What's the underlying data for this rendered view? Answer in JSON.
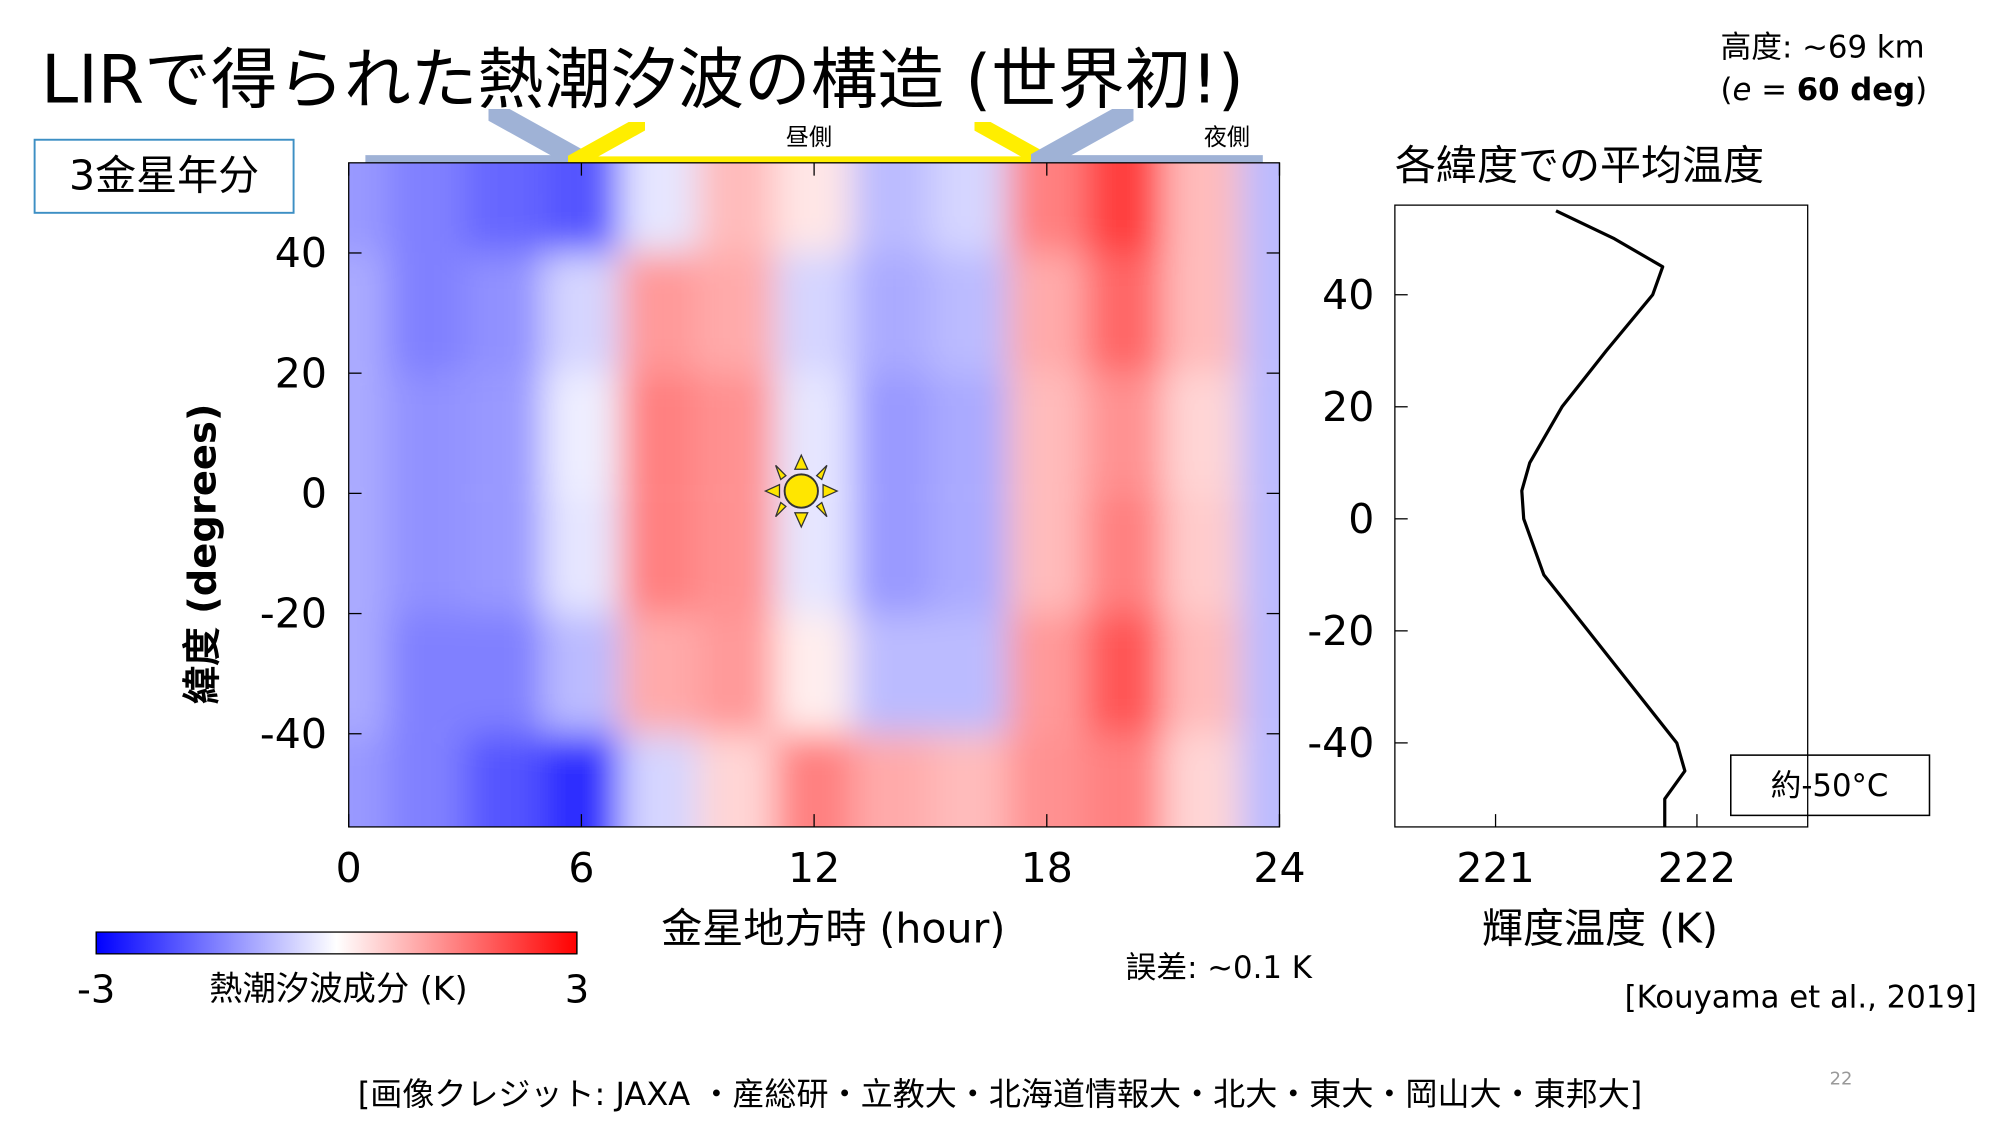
{
  "slide": {
    "title": "LIRで得られた熱潮汐波の構造 (世界初!)",
    "altitude": "高度: ~69 km",
    "emission_angle": [
      "(",
      "e",
      " = ",
      "60 deg",
      ")"
    ],
    "period_box": "3金星年分",
    "dayside": "昼側",
    "nightside": "夜側",
    "error_note": "誤差: ~0.1 K",
    "reference": "[Kouyama et al., 2019]",
    "credit": "[画像クレジット: JAXA ・産総研・立教大・北海道情報大・北大・東大・岡山大・東邦大]",
    "page_number": "22"
  },
  "chart_data": [
    {
      "type": "heatmap",
      "x": [
        0,
        2,
        4,
        6,
        8,
        10,
        12,
        14,
        16,
        18,
        20,
        22,
        24
      ],
      "y": [
        50,
        30,
        10,
        -10,
        -30,
        -50
      ],
      "values": [
        [
          -1.2,
          -1.5,
          -1.8,
          -2.0,
          -0.3,
          0.8,
          0.3,
          -0.8,
          -0.5,
          1.5,
          2.3,
          0.8,
          -0.8
        ],
        [
          -1.0,
          -1.5,
          -1.3,
          -0.5,
          1.2,
          1.0,
          -0.5,
          -1.0,
          -0.8,
          1.0,
          1.8,
          0.8,
          -0.8
        ],
        [
          -1.0,
          -1.3,
          -1.2,
          -0.2,
          1.5,
          1.3,
          -0.3,
          -1.2,
          -1.0,
          0.8,
          1.3,
          0.5,
          -0.8
        ],
        [
          -1.0,
          -1.3,
          -1.2,
          -0.3,
          1.5,
          1.3,
          -0.3,
          -1.2,
          -1.0,
          0.8,
          1.5,
          0.6,
          -0.8
        ],
        [
          -1.0,
          -1.5,
          -1.5,
          -0.8,
          1.0,
          1.2,
          0.2,
          -0.8,
          -0.8,
          1.2,
          2.0,
          0.8,
          -0.8
        ],
        [
          -1.2,
          -1.5,
          -2.0,
          -2.5,
          -0.5,
          0.5,
          1.5,
          1.0,
          0.8,
          1.3,
          1.5,
          0.5,
          -0.8
        ]
      ],
      "xlim": [
        0,
        24
      ],
      "ylim": [
        -55.5,
        55
      ],
      "xticks": [
        0,
        6,
        12,
        18,
        24
      ],
      "yticks": [
        -40,
        -20,
        0,
        20,
        40
      ],
      "x_label": "金星地方時 (hour)",
      "y_label": "緯度 (degrees)",
      "colorbar": {
        "label": "熱潮汐波成分 (K)",
        "lim": [
          -3,
          3
        ],
        "ticks": [
          -3,
          3
        ]
      },
      "colors": {
        "negative": "#0000ff",
        "positive": "#ff0000"
      }
    },
    {
      "type": "line",
      "title": "各緯度での平均温度",
      "y": [
        55,
        50,
        45,
        40,
        30,
        20,
        10,
        5,
        0,
        -10,
        -20,
        -30,
        -40,
        -45,
        -50,
        -55
      ],
      "values": [
        221.3,
        221.59,
        221.83,
        221.78,
        221.55,
        221.33,
        221.17,
        221.13,
        221.14,
        221.24,
        221.46,
        221.68,
        221.9,
        221.94,
        221.84,
        221.84
      ],
      "color": "#000000",
      "xlim": [
        220.5,
        222.55
      ],
      "ylim": [
        -55,
        56
      ],
      "xticks": [
        221,
        222
      ],
      "yticks": [
        -40,
        -20,
        0,
        20,
        40
      ],
      "x_label": "輝度温度 (K)",
      "annotation": "約-50°C"
    }
  ]
}
